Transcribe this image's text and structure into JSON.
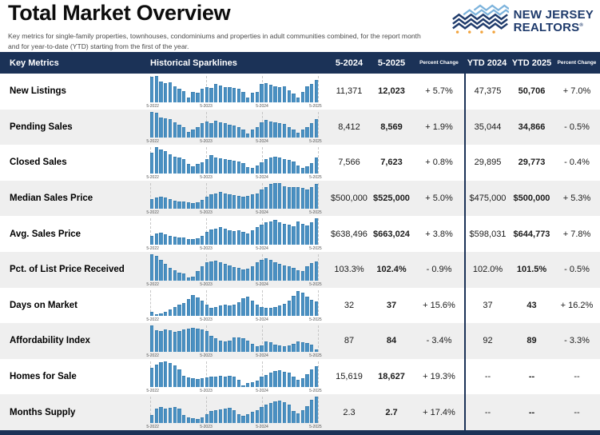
{
  "page": {
    "title": "Total Market Overview",
    "subtitle_line1": "Key metrics for single-family properties, townhouses, condominiums and properties in adult communities combined, for the report month",
    "subtitle_line2": "and for year-to-date (YTD) starting from the first of the year."
  },
  "logo": {
    "line1": "NEW JERSEY",
    "line2": "REALTORS",
    "registered_mark": "®"
  },
  "colors": {
    "navy": "#1B3257",
    "logo_navy": "#1E3A6B",
    "logo_light_blue": "#7CB3DC",
    "logo_orange": "#F2A33C",
    "bar_fill": "#4A90C2",
    "row_alt": "#EFEFEF"
  },
  "table": {
    "headers": {
      "key_metrics": "Key Metrics",
      "sparklines": "Historical Sparklines",
      "month_2024": "5-2024",
      "month_2025": "5-2025",
      "percent_change": "Percent Change",
      "ytd_2024": "YTD 2024",
      "ytd_2025": "YTD 2025",
      "ytd_percent_change": "Percent Change"
    },
    "spark_axis_labels": [
      "5-2022",
      "5-2023",
      "5-2024",
      "5-2025"
    ],
    "rows": [
      {
        "metric": "New Listings",
        "m2024": "11,371",
        "m2025": "12,023",
        "pct_change": "+ 5.7%",
        "ytd_2024": "47,375",
        "ytd_2025": "50,706",
        "ytd_pct_change": "+ 7.0%",
        "spark": [
          0.98,
          1.0,
          0.8,
          0.72,
          0.74,
          0.6,
          0.5,
          0.42,
          0.18,
          0.38,
          0.36,
          0.5,
          0.58,
          0.55,
          0.68,
          0.62,
          0.58,
          0.57,
          0.55,
          0.5,
          0.38,
          0.18,
          0.36,
          0.4,
          0.68,
          0.72,
          0.65,
          0.6,
          0.58,
          0.6,
          0.45,
          0.32,
          0.18,
          0.4,
          0.6,
          0.7,
          0.85
        ]
      },
      {
        "metric": "Pending Sales",
        "m2024": "8,412",
        "m2025": "8,569",
        "pct_change": "+ 1.9%",
        "ytd_2024": "35,044",
        "ytd_2025": "34,866",
        "ytd_pct_change": "- 0.5%",
        "spark": [
          1.0,
          0.95,
          0.78,
          0.75,
          0.72,
          0.6,
          0.5,
          0.4,
          0.22,
          0.3,
          0.42,
          0.55,
          0.62,
          0.55,
          0.65,
          0.6,
          0.55,
          0.5,
          0.48,
          0.42,
          0.3,
          0.15,
          0.3,
          0.4,
          0.6,
          0.68,
          0.62,
          0.58,
          0.55,
          0.52,
          0.42,
          0.3,
          0.18,
          0.3,
          0.42,
          0.55,
          0.7
        ]
      },
      {
        "metric": "Closed Sales",
        "m2024": "7,566",
        "m2025": "7,623",
        "pct_change": "+ 0.8%",
        "ytd_2024": "29,895",
        "ytd_2025": "29,773",
        "ytd_pct_change": "- 0.4%",
        "spark": [
          0.8,
          1.0,
          0.9,
          0.85,
          0.72,
          0.65,
          0.6,
          0.55,
          0.35,
          0.28,
          0.35,
          0.42,
          0.55,
          0.7,
          0.62,
          0.58,
          0.55,
          0.5,
          0.48,
          0.45,
          0.4,
          0.25,
          0.22,
          0.3,
          0.42,
          0.55,
          0.62,
          0.65,
          0.6,
          0.55,
          0.5,
          0.45,
          0.3,
          0.22,
          0.28,
          0.4,
          0.62
        ]
      },
      {
        "metric": "Median Sales Price",
        "m2024": "$500,000",
        "m2025": "$525,000",
        "pct_change": "+ 5.0%",
        "ytd_2024": "$475,000",
        "ytd_2025": "$500,000",
        "ytd_pct_change": "+ 5.3%",
        "spark": [
          0.38,
          0.45,
          0.48,
          0.45,
          0.38,
          0.32,
          0.3,
          0.3,
          0.25,
          0.22,
          0.25,
          0.35,
          0.48,
          0.55,
          0.6,
          0.65,
          0.58,
          0.55,
          0.52,
          0.5,
          0.48,
          0.5,
          0.55,
          0.6,
          0.75,
          0.85,
          0.95,
          1.0,
          0.98,
          0.88,
          0.85,
          0.85,
          0.85,
          0.82,
          0.75,
          0.85,
          0.95
        ]
      },
      {
        "metric": "Avg. Sales Price",
        "m2024": "$638,496",
        "m2025": "$663,024",
        "pct_change": "+ 3.8%",
        "ytd_2024": "$598,031",
        "ytd_2025": "$644,773",
        "ytd_pct_change": "+ 7.8%",
        "spark": [
          0.35,
          0.42,
          0.45,
          0.4,
          0.35,
          0.3,
          0.28,
          0.28,
          0.22,
          0.2,
          0.25,
          0.35,
          0.5,
          0.58,
          0.62,
          0.68,
          0.6,
          0.55,
          0.52,
          0.55,
          0.48,
          0.42,
          0.55,
          0.68,
          0.78,
          0.85,
          0.9,
          0.95,
          0.85,
          0.8,
          0.78,
          0.72,
          0.88,
          0.8,
          0.75,
          0.85,
          1.0
        ]
      },
      {
        "metric": "Pct. of List Price Received",
        "m2024": "103.3%",
        "m2025": "102.4%",
        "pct_change": "- 0.9%",
        "ytd_2024": "102.0%",
        "ytd_2025": "101.5%",
        "ytd_pct_change": "- 0.5%",
        "spark": [
          1.0,
          0.95,
          0.78,
          0.62,
          0.48,
          0.38,
          0.3,
          0.25,
          0.12,
          0.15,
          0.35,
          0.55,
          0.68,
          0.72,
          0.75,
          0.7,
          0.62,
          0.58,
          0.52,
          0.48,
          0.42,
          0.45,
          0.55,
          0.7,
          0.8,
          0.85,
          0.78,
          0.7,
          0.62,
          0.58,
          0.55,
          0.48,
          0.4,
          0.35,
          0.55,
          0.65,
          0.72
        ]
      },
      {
        "metric": "Days on Market",
        "m2024": "32",
        "m2025": "37",
        "pct_change": "+ 15.6%",
        "ytd_2024": "37",
        "ytd_2025": "43",
        "ytd_pct_change": "+ 16.2%",
        "spark": [
          0.15,
          0.08,
          0.1,
          0.15,
          0.25,
          0.35,
          0.42,
          0.5,
          0.65,
          0.8,
          0.72,
          0.58,
          0.42,
          0.3,
          0.35,
          0.4,
          0.42,
          0.4,
          0.45,
          0.52,
          0.68,
          0.75,
          0.6,
          0.45,
          0.35,
          0.3,
          0.32,
          0.35,
          0.4,
          0.48,
          0.6,
          0.78,
          0.95,
          0.9,
          0.75,
          0.62,
          0.55
        ]
      },
      {
        "metric": "Affordability Index",
        "m2024": "87",
        "m2025": "84",
        "pct_change": "- 3.4%",
        "ytd_2024": "92",
        "ytd_2025": "89",
        "ytd_pct_change": "- 3.3%",
        "spark": [
          1.0,
          0.82,
          0.8,
          0.85,
          0.82,
          0.75,
          0.8,
          0.85,
          0.88,
          0.9,
          0.88,
          0.85,
          0.78,
          0.62,
          0.52,
          0.42,
          0.38,
          0.42,
          0.55,
          0.55,
          0.52,
          0.42,
          0.3,
          0.22,
          0.25,
          0.38,
          0.35,
          0.28,
          0.25,
          0.22,
          0.25,
          0.3,
          0.38,
          0.35,
          0.32,
          0.28,
          0.08
        ]
      },
      {
        "metric": "Homes for Sale",
        "m2024": "15,619",
        "m2025": "18,627",
        "pct_change": "+ 19.3%",
        "ytd_2024": "--",
        "ytd_2025": "--",
        "ytd_pct_change": "--",
        "spark": [
          0.75,
          0.88,
          0.95,
          1.0,
          0.92,
          0.85,
          0.7,
          0.45,
          0.38,
          0.35,
          0.32,
          0.35,
          0.38,
          0.4,
          0.42,
          0.45,
          0.42,
          0.45,
          0.4,
          0.3,
          0.08,
          0.15,
          0.2,
          0.25,
          0.4,
          0.48,
          0.55,
          0.62,
          0.65,
          0.6,
          0.55,
          0.4,
          0.3,
          0.35,
          0.5,
          0.7,
          0.82
        ]
      },
      {
        "metric": "Months Supply",
        "m2024": "2.3",
        "m2025": "2.7",
        "pct_change": "+ 17.4%",
        "ytd_2024": "--",
        "ytd_2025": "--",
        "ytd_pct_change": "--",
        "spark": [
          0.3,
          0.55,
          0.6,
          0.55,
          0.58,
          0.6,
          0.55,
          0.3,
          0.2,
          0.18,
          0.15,
          0.22,
          0.35,
          0.45,
          0.48,
          0.52,
          0.55,
          0.58,
          0.5,
          0.35,
          0.28,
          0.35,
          0.42,
          0.5,
          0.62,
          0.7,
          0.78,
          0.82,
          0.85,
          0.8,
          0.7,
          0.45,
          0.38,
          0.5,
          0.65,
          0.9,
          1.0
        ]
      }
    ]
  }
}
